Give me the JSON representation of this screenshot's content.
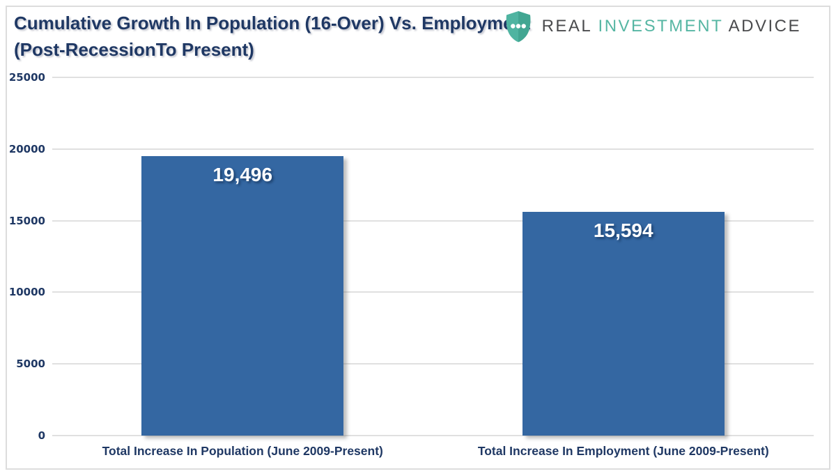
{
  "page": {
    "background": "#ffffff",
    "border_color": "#dddddd"
  },
  "header": {
    "title_line1": "Cumulative Growth In Population (16-Over) Vs. Employment",
    "title_line2": "(Post-RecessionTo Present)",
    "title_color": "#1f3864"
  },
  "logo": {
    "word_real": "REAL",
    "word_investment": "INVESTMENT",
    "word_advice": "ADVICE",
    "dark_text_color": "#4a4b4d",
    "teal_color": "#56b6a3",
    "icon": "shield-three-dots"
  },
  "chart_data": {
    "type": "bar",
    "title": "Cumulative Growth In Population (16-Over) Vs. Employment (Post-RecessionTo Present)",
    "categories": [
      "Total Increase In Population (June 2009-Present)",
      "Total Increase In Employment (June 2009-Present)"
    ],
    "values": [
      19496,
      15594
    ],
    "data_labels": [
      "19,496",
      "15,594"
    ],
    "yticks": [
      0,
      5000,
      10000,
      15000,
      20000,
      25000
    ],
    "ytick_labels": [
      "0",
      "5000",
      "10000",
      "15000",
      "20000",
      "25000"
    ],
    "ylim": [
      0,
      25000
    ],
    "xlabel": "",
    "ylabel": "",
    "grid": true,
    "legend": "none",
    "bar_color": "#3467a2",
    "gridline_color": "#e0e0e0",
    "axis_label_color": "#1f3864",
    "data_label_color": "#ffffff"
  }
}
